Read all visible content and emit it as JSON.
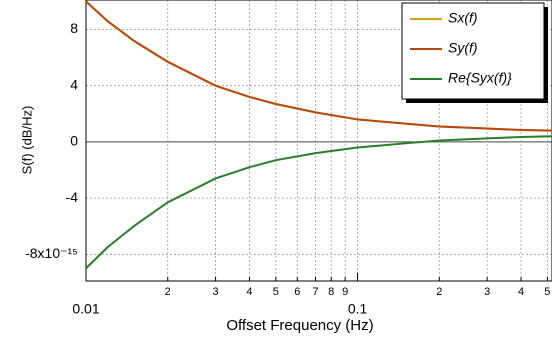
{
  "chart_data": {
    "type": "line",
    "xlabel": "Offset Frequency (Hz)",
    "ylabel": "S(f) (dB/Hz)",
    "x": [
      0.01,
      0.012,
      0.015,
      0.02,
      0.03,
      0.04,
      0.05,
      0.07,
      0.1,
      0.15,
      0.2,
      0.3,
      0.4,
      0.52
    ],
    "series": [
      {
        "name": "Sx(f)",
        "color": "#d4a017",
        "values": [
          10,
          8.6,
          7.2,
          5.7,
          4.0,
          3.2,
          2.7,
          2.1,
          1.6,
          1.3,
          1.1,
          0.95,
          0.85,
          0.8
        ]
      },
      {
        "name": "Sy(f)",
        "color": "#b5490e",
        "values": [
          10,
          8.6,
          7.2,
          5.7,
          4.0,
          3.2,
          2.7,
          2.1,
          1.6,
          1.3,
          1.1,
          0.95,
          0.85,
          0.8
        ]
      },
      {
        "name": "Re{Syx(f)}",
        "color": "#2a7d2a",
        "values": [
          -9.0,
          -7.5,
          -6.0,
          -4.3,
          -2.6,
          -1.8,
          -1.3,
          -0.8,
          -0.4,
          -0.1,
          0.1,
          0.25,
          0.35,
          0.4
        ]
      }
    ],
    "xscale": "log",
    "xlim": [
      0.01,
      0.52
    ],
    "ylim": [
      -9.9,
      10.1
    ],
    "xticks": [
      0.01,
      {
        "value": 0.02,
        "label": "2"
      },
      {
        "value": 0.03,
        "label": "3"
      },
      {
        "value": 0.04,
        "label": "4"
      },
      {
        "value": 0.05,
        "label": "5"
      },
      {
        "value": 0.06,
        "label": "6"
      },
      {
        "value": 0.07,
        "label": "7"
      },
      {
        "value": 0.08,
        "label": "8"
      },
      {
        "value": 0.09,
        "label": "9"
      },
      0.1,
      {
        "value": 0.2,
        "label": "2"
      },
      {
        "value": 0.3,
        "label": "3"
      },
      {
        "value": 0.4,
        "label": "4"
      },
      {
        "value": 0.5,
        "label": "5"
      }
    ],
    "yticks": [
      {
        "value": -8,
        "label": "-8x10⁻¹⁵"
      },
      -4,
      0,
      4,
      8
    ],
    "grid": true,
    "legend": "upper right"
  }
}
